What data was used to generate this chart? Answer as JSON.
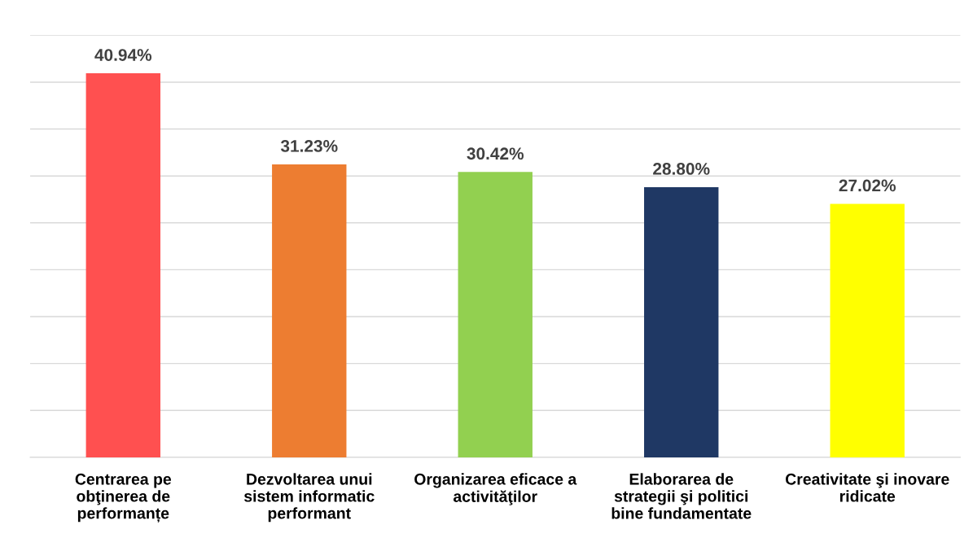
{
  "chart_data": {
    "type": "bar",
    "categories": [
      "Centrarea pe\nobţinerea de\nperformanțe",
      "Dezvoltarea unui\nsistem informatic\nperformant",
      "Organizarea eficace a\nactivităţilor",
      "Elaborarea de\nstrategii şi politici\nbine fundamentate",
      "Creativitate şi inovare\nridicate"
    ],
    "values": [
      40.94,
      31.23,
      30.42,
      28.8,
      27.02
    ],
    "value_labels": [
      "40.94%",
      "31.23%",
      "30.42%",
      "28.80%",
      "27.02%"
    ],
    "colors": [
      "#ff5050",
      "#ed7d31",
      "#92d050",
      "#1f3864",
      "#ffff00"
    ],
    "ylim": [
      0,
      45
    ],
    "yticks": [
      {
        "value": 0,
        "label": null
      },
      {
        "value": 5,
        "label": null
      },
      {
        "value": 10,
        "label": null
      },
      {
        "value": 15,
        "label": null
      },
      {
        "value": 20,
        "label": null
      },
      {
        "value": 25,
        "label": null
      },
      {
        "value": 30,
        "label": null
      },
      {
        "value": 35,
        "label": null
      },
      {
        "value": 40,
        "label": null
      },
      {
        "value": 45,
        "label": null
      }
    ],
    "grid": "y",
    "tick_labels": "x"
  }
}
